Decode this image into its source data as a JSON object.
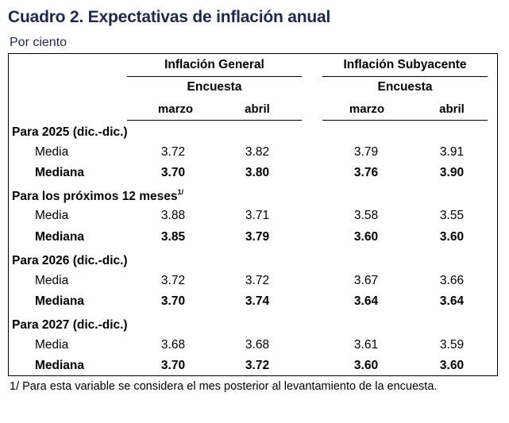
{
  "title": "Cuadro 2. Expectativas de inflación anual",
  "subtitle": "Por ciento",
  "groups": [
    {
      "label": "Inflación General",
      "sublabel": "Encuesta",
      "months": [
        "marzo",
        "abril"
      ]
    },
    {
      "label": "Inflación Subyacente",
      "sublabel": "Encuesta",
      "months": [
        "marzo",
        "abril"
      ]
    }
  ],
  "sections": [
    {
      "label": "Para 2025 (dic.-dic.)",
      "sup": "",
      "rows": [
        {
          "label": "Media",
          "values": [
            "3.72",
            "3.82",
            "3.79",
            "3.91"
          ]
        },
        {
          "label": "Mediana",
          "values": [
            "3.70",
            "3.80",
            "3.76",
            "3.90"
          ]
        }
      ]
    },
    {
      "label": "Para los próximos 12 meses",
      "sup": "1/",
      "rows": [
        {
          "label": "Media",
          "values": [
            "3.88",
            "3.71",
            "3.58",
            "3.55"
          ]
        },
        {
          "label": "Mediana",
          "values": [
            "3.85",
            "3.79",
            "3.60",
            "3.60"
          ]
        }
      ]
    },
    {
      "label": "Para 2026 (dic.-dic.)",
      "sup": "",
      "rows": [
        {
          "label": "Media",
          "values": [
            "3.72",
            "3.72",
            "3.67",
            "3.66"
          ]
        },
        {
          "label": "Mediana",
          "values": [
            "3.70",
            "3.74",
            "3.64",
            "3.64"
          ]
        }
      ]
    },
    {
      "label": "Para 2027 (dic.-dic.)",
      "sup": "",
      "rows": [
        {
          "label": "Media",
          "values": [
            "3.68",
            "3.68",
            "3.61",
            "3.59"
          ]
        },
        {
          "label": "Mediana",
          "values": [
            "3.70",
            "3.72",
            "3.60",
            "3.60"
          ]
        }
      ]
    }
  ],
  "footnote": "1/ Para esta variable se considera el mes posterior al levantamiento de la encuesta.",
  "colors": {
    "title": "#1f2a4a",
    "text": "#000000"
  }
}
